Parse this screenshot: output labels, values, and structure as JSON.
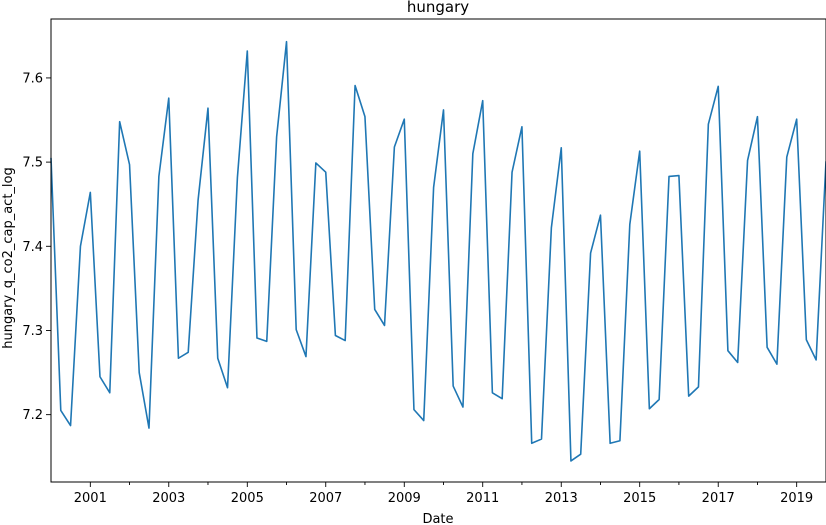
{
  "chart_data": {
    "type": "line",
    "title": "hungary",
    "xlabel": "Date",
    "ylabel": "hungary_q_co2_cap_act_log",
    "xlim": [
      "2000-01-01",
      "2019-10-01"
    ],
    "ylim": [
      7.12,
      7.67
    ],
    "x_ticks": [
      "2001",
      "2003",
      "2005",
      "2007",
      "2009",
      "2011",
      "2013",
      "2015",
      "2017",
      "2019"
    ],
    "y_ticks": [
      "7.2",
      "7.3",
      "7.4",
      "7.5",
      "7.6"
    ],
    "grid": false,
    "line_color": "#1f77b4",
    "series": [
      {
        "x": [
          "2000-01-01",
          "2000-04-01",
          "2000-07-01",
          "2000-10-01",
          "2001-01-01",
          "2001-04-01",
          "2001-07-01",
          "2001-10-01",
          "2002-01-01",
          "2002-04-01",
          "2002-07-01",
          "2002-10-01",
          "2003-01-01",
          "2003-04-01",
          "2003-07-01",
          "2003-10-01",
          "2004-01-01",
          "2004-04-01",
          "2004-07-01",
          "2004-10-01",
          "2005-01-01",
          "2005-04-01",
          "2005-07-01",
          "2005-10-01",
          "2006-01-01",
          "2006-04-01",
          "2006-07-01",
          "2006-10-01",
          "2007-01-01",
          "2007-04-01",
          "2007-07-01",
          "2007-10-01",
          "2008-01-01",
          "2008-04-01",
          "2008-07-01",
          "2008-10-01",
          "2009-01-01",
          "2009-04-01",
          "2009-07-01",
          "2009-10-01",
          "2010-01-01",
          "2010-04-01",
          "2010-07-01",
          "2010-10-01",
          "2011-01-01",
          "2011-04-01",
          "2011-07-01",
          "2011-10-01",
          "2012-01-01",
          "2012-04-01",
          "2012-07-01",
          "2012-10-01",
          "2013-01-01",
          "2013-04-01",
          "2013-07-01",
          "2013-10-01",
          "2014-01-01",
          "2014-04-01",
          "2014-07-01",
          "2014-10-01",
          "2015-01-01",
          "2015-04-01",
          "2015-07-01",
          "2015-10-01",
          "2016-01-01",
          "2016-04-01",
          "2016-07-01",
          "2016-10-01",
          "2017-01-01",
          "2017-04-01",
          "2017-07-01",
          "2017-10-01",
          "2018-01-01",
          "2018-04-01",
          "2018-07-01",
          "2018-10-01",
          "2019-01-01",
          "2019-04-01",
          "2019-07-01",
          "2019-10-01"
        ],
        "y": [
          7.505,
          7.205,
          7.187,
          7.4,
          7.464,
          7.245,
          7.226,
          7.548,
          7.497,
          7.25,
          7.184,
          7.483,
          7.576,
          7.267,
          7.274,
          7.455,
          7.564,
          7.267,
          7.232,
          7.482,
          7.632,
          7.291,
          7.287,
          7.53,
          7.643,
          7.301,
          7.269,
          7.499,
          7.488,
          7.294,
          7.288,
          7.591,
          7.554,
          7.325,
          7.306,
          7.518,
          7.551,
          7.206,
          7.193,
          7.47,
          7.562,
          7.234,
          7.209,
          7.51,
          7.573,
          7.226,
          7.219,
          7.488,
          7.542,
          7.166,
          7.171,
          7.422,
          7.517,
          7.145,
          7.153,
          7.392,
          7.437,
          7.166,
          7.169,
          7.426,
          7.513,
          7.207,
          7.218,
          7.483,
          7.484,
          7.222,
          7.233,
          7.545,
          7.59,
          7.276,
          7.262,
          7.502,
          7.554,
          7.28,
          7.26,
          7.506,
          7.551,
          7.289,
          7.265,
          7.501
        ]
      }
    ]
  }
}
